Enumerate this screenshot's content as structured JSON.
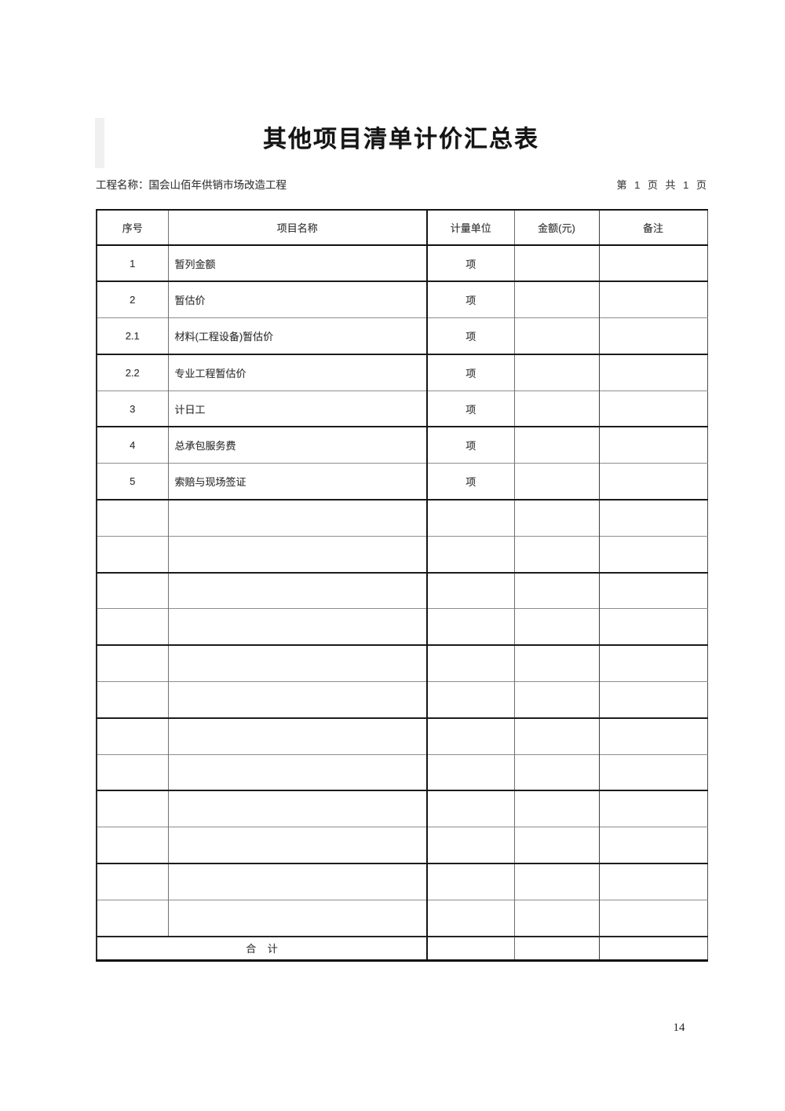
{
  "document": {
    "title": "其他项目清单计价汇总表",
    "project_label": "工程名称：国会山佰年供销市场改造工程",
    "page_indicator": "第 1 页 共 1 页",
    "footer_page_number": "14"
  },
  "table": {
    "headers": [
      "序号",
      "项目名称",
      "计量单位",
      "金额(元)",
      "备注"
    ],
    "rows": [
      {
        "no": "1",
        "name": "暂列金额",
        "unit": "项",
        "amount": "",
        "note": ""
      },
      {
        "no": "2",
        "name": "暂估价",
        "unit": "项",
        "amount": "",
        "note": ""
      },
      {
        "no": "2.1",
        "name": "材料(工程设备)暂估价",
        "unit": "项",
        "amount": "",
        "note": ""
      },
      {
        "no": "2.2",
        "name": "专业工程暂估价",
        "unit": "项",
        "amount": "",
        "note": ""
      },
      {
        "no": "3",
        "name": "计日工",
        "unit": "项",
        "amount": "",
        "note": ""
      },
      {
        "no": "4",
        "name": "总承包服务费",
        "unit": "项",
        "amount": "",
        "note": ""
      },
      {
        "no": "5",
        "name": "索赔与现场签证",
        "unit": "项",
        "amount": "",
        "note": ""
      }
    ],
    "empty_row_count": 12,
    "total_row": {
      "label": "合    计",
      "unit": "",
      "amount": "",
      "note": ""
    }
  }
}
